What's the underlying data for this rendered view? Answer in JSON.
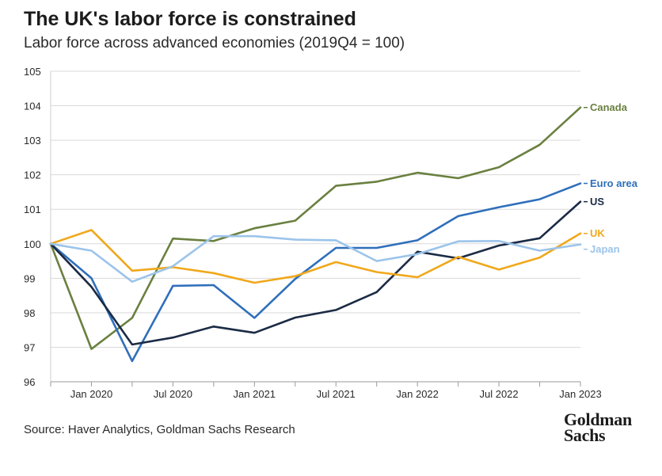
{
  "header": {
    "title": "The UK's labor force is constrained",
    "subtitle": "Labor force across advanced economies (2019Q4 = 100)"
  },
  "footer": {
    "source": "Source: Haver Analytics, Goldman Sachs Research",
    "logo_line1": "Goldman",
    "logo_line2": "Sachs"
  },
  "chart_data": {
    "type": "line",
    "title": "The UK's labor force is constrained",
    "subtitle": "Labor force across advanced economies (2019Q4 = 100)",
    "xlabel": "",
    "ylabel": "",
    "x": [
      "2019Q4",
      "2020Q1",
      "2020Q2",
      "2020Q3",
      "2020Q4",
      "2021Q1",
      "2021Q2",
      "2021Q3",
      "2021Q4",
      "2022Q1",
      "2022Q2",
      "2022Q3",
      "2022Q4",
      "2023Q1"
    ],
    "x_tick_labels": [
      {
        "at": "2020Q1",
        "label": "Jan 2020"
      },
      {
        "at": "2020Q3",
        "label": "Jul 2020"
      },
      {
        "at": "2021Q1",
        "label": "Jan 2021"
      },
      {
        "at": "2021Q3",
        "label": "Jul 2021"
      },
      {
        "at": "2022Q1",
        "label": "Jan 2022"
      },
      {
        "at": "2022Q3",
        "label": "Jul 2022"
      },
      {
        "at": "2023Q1",
        "label": "Jan 2023"
      }
    ],
    "ylim": [
      96,
      105
    ],
    "y_ticks": [
      "96",
      "97",
      "98",
      "99",
      "100",
      "101",
      "102",
      "103",
      "104",
      "105"
    ],
    "grid": "horizontal",
    "legend": "inline labels at right end of lines",
    "series": [
      {
        "name": "Canada",
        "color": "#6a8040",
        "values": [
          100.0,
          96.95,
          97.85,
          100.15,
          100.08,
          100.45,
          100.67,
          101.68,
          101.8,
          102.06,
          101.9,
          102.22,
          102.87,
          103.95
        ]
      },
      {
        "name": "Euro area",
        "color": "#2f6fbb",
        "values": [
          100.0,
          99.0,
          96.6,
          98.78,
          98.8,
          97.85,
          98.98,
          99.88,
          99.88,
          100.1,
          100.8,
          101.06,
          101.29,
          101.75
        ]
      },
      {
        "name": "US",
        "color": "#1b2b45",
        "values": [
          100.0,
          98.75,
          97.08,
          97.28,
          97.6,
          97.42,
          97.86,
          98.08,
          98.6,
          99.77,
          99.58,
          99.95,
          100.16,
          101.22
        ]
      },
      {
        "name": "UK",
        "color": "#f0a81c",
        "values": [
          100.0,
          100.4,
          99.22,
          99.32,
          99.15,
          98.87,
          99.06,
          99.47,
          99.18,
          99.03,
          99.62,
          99.25,
          99.6,
          100.3
        ]
      },
      {
        "name": "Japan",
        "color": "#9cc4ea",
        "values": [
          100.0,
          99.8,
          98.9,
          99.35,
          100.22,
          100.22,
          100.12,
          100.1,
          99.5,
          99.7,
          100.07,
          100.08,
          99.8,
          99.98
        ]
      }
    ]
  }
}
